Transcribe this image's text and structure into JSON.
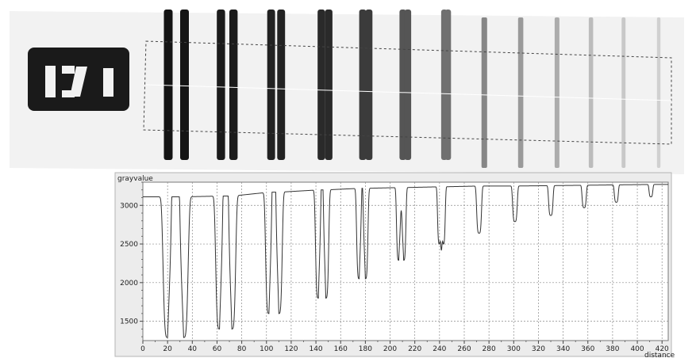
{
  "colors": {
    "background": "#ffffff",
    "radiograph_background": "#f2f2f2",
    "pair_colors": [
      "#141414",
      "#1b1b1b",
      "#222222",
      "#2a2a2a",
      "#3b3b3b",
      "#555555",
      "#707070",
      "#868686",
      "#9a9a9a",
      "#acacac",
      "#bcbcbc",
      "#c8c8c8",
      "#d0d0d0"
    ],
    "roi_border": "#444444",
    "plot_background": "#ffffff",
    "plot_frame_fill": "#ececec",
    "grid": "#8a8a8a",
    "profile_line": "#333333"
  },
  "chart_data": {
    "type": "line",
    "ylabel": "grayvalue",
    "xlabel": "distance",
    "xlim": [
      0,
      425
    ],
    "ylim": [
      1250,
      3300
    ],
    "xticks": [
      0,
      20,
      40,
      60,
      80,
      100,
      120,
      140,
      160,
      180,
      200,
      220,
      240,
      260,
      280,
      300,
      320,
      340,
      360,
      380,
      400,
      420
    ],
    "yticks": [
      1500,
      2000,
      2500,
      3000
    ],
    "grid": true,
    "line_pairs": [
      {
        "centers": [
          20,
          33
        ],
        "baseline": 3110,
        "min": 1290,
        "gap_value": 2950,
        "width": 4
      },
      {
        "centers": [
          62,
          72
        ],
        "baseline": 3120,
        "min": 1400,
        "gap_value": 2870,
        "width": 3.4
      },
      {
        "centers": [
          102,
          110
        ],
        "baseline": 3170,
        "min": 1600,
        "gap_value": 2880,
        "width": 3
      },
      {
        "centers": [
          142,
          148
        ],
        "baseline": 3200,
        "min": 1800,
        "gap_value": 2820,
        "width": 2.6
      },
      {
        "centers": [
          175,
          180
        ],
        "baseline": 3220,
        "min": 2050,
        "gap_value": 2770,
        "width": 2.3
      },
      {
        "centers": [
          207,
          211
        ],
        "baseline": 3230,
        "min": 2290,
        "gap_value": 2730,
        "width": 2
      },
      {
        "centers": [
          240,
          243
        ],
        "baseline": 3240,
        "min": 2500,
        "gap_value": 2600,
        "width": 1.8
      },
      {
        "centers": [
          272
        ],
        "baseline": 3250,
        "min": 2640,
        "width": 2.2
      },
      {
        "centers": [
          301
        ],
        "baseline": 3250,
        "min": 2790,
        "width": 2.1
      },
      {
        "centers": [
          330
        ],
        "baseline": 3255,
        "min": 2870,
        "width": 2
      },
      {
        "centers": [
          357
        ],
        "baseline": 3260,
        "min": 2970,
        "width": 1.9
      },
      {
        "centers": [
          383
        ],
        "baseline": 3265,
        "min": 3040,
        "width": 1.8
      },
      {
        "centers": [
          411
        ],
        "baseline": 3270,
        "min": 3110,
        "width": 1.7
      }
    ]
  }
}
